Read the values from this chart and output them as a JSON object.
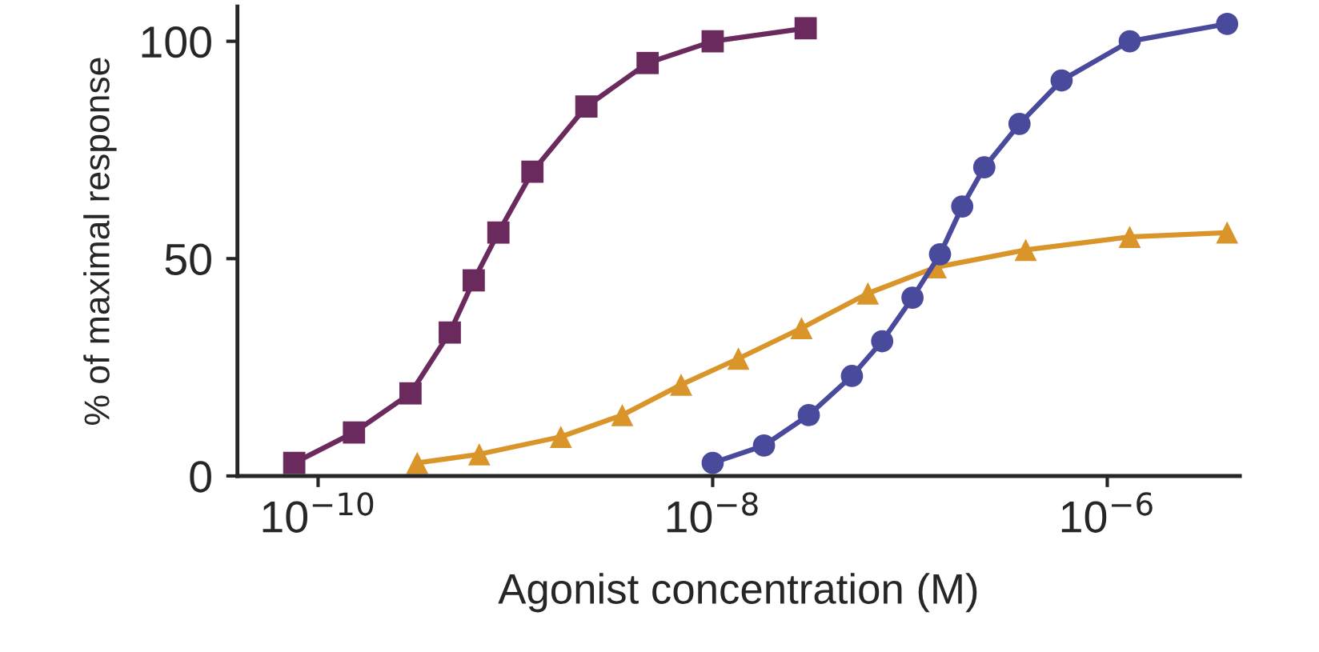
{
  "chart_data": {
    "type": "line",
    "xlabel": "Agonist concentration (M)",
    "ylabel": "% of maximal response",
    "log": "x",
    "xlim": [
      3.9e-11,
      4.7e-06
    ],
    "xticks": [
      {
        "value": 1e-10,
        "label": "10$^{−10}$"
      },
      {
        "value": 1e-08,
        "label": "10$^{−8}$"
      },
      {
        "value": 1e-06,
        "label": "10$^{−6}$"
      }
    ],
    "ylim": [
      0,
      108
    ],
    "yticks": [
      0,
      50,
      100
    ],
    "grid": false,
    "line_style": "solid",
    "series": [
      {
        "color": "#6b2a5e",
        "marker": "square",
        "x": [
          7.57e-11,
          1.52e-10,
          2.94e-10,
          4.65e-10,
          6.15e-10,
          8.2e-10,
          1.22e-09,
          2.29e-09,
          4.68e-09,
          1e-08,
          2.96e-08
        ],
        "values": [
          3,
          10,
          19,
          33,
          45,
          56,
          70,
          85,
          95,
          100,
          103
        ]
      },
      {
        "color": "#d9952a",
        "marker": "triangle",
        "x": [
          3.18e-10,
          6.56e-10,
          1.7e-09,
          3.48e-09,
          6.92e-09,
          1.35e-08,
          2.82e-08,
          6.12e-08,
          1.35e-07,
          3.86e-07,
          1.3e-06,
          4.05e-06
        ],
        "values": [
          3,
          5,
          9,
          14,
          21,
          27,
          34,
          42,
          48,
          52,
          55,
          56
        ]
      },
      {
        "color": "#4a4a9c",
        "marker": "circle",
        "x": [
          1e-08,
          1.82e-08,
          3.07e-08,
          5.08e-08,
          7.23e-08,
          1.03e-07,
          1.42e-07,
          1.84e-07,
          2.38e-07,
          3.59e-07,
          5.87e-07,
          1.3e-06,
          4.05e-06
        ],
        "values": [
          3,
          7,
          14,
          23,
          31,
          41,
          51,
          62,
          71,
          81,
          91,
          100,
          104
        ]
      }
    ]
  }
}
